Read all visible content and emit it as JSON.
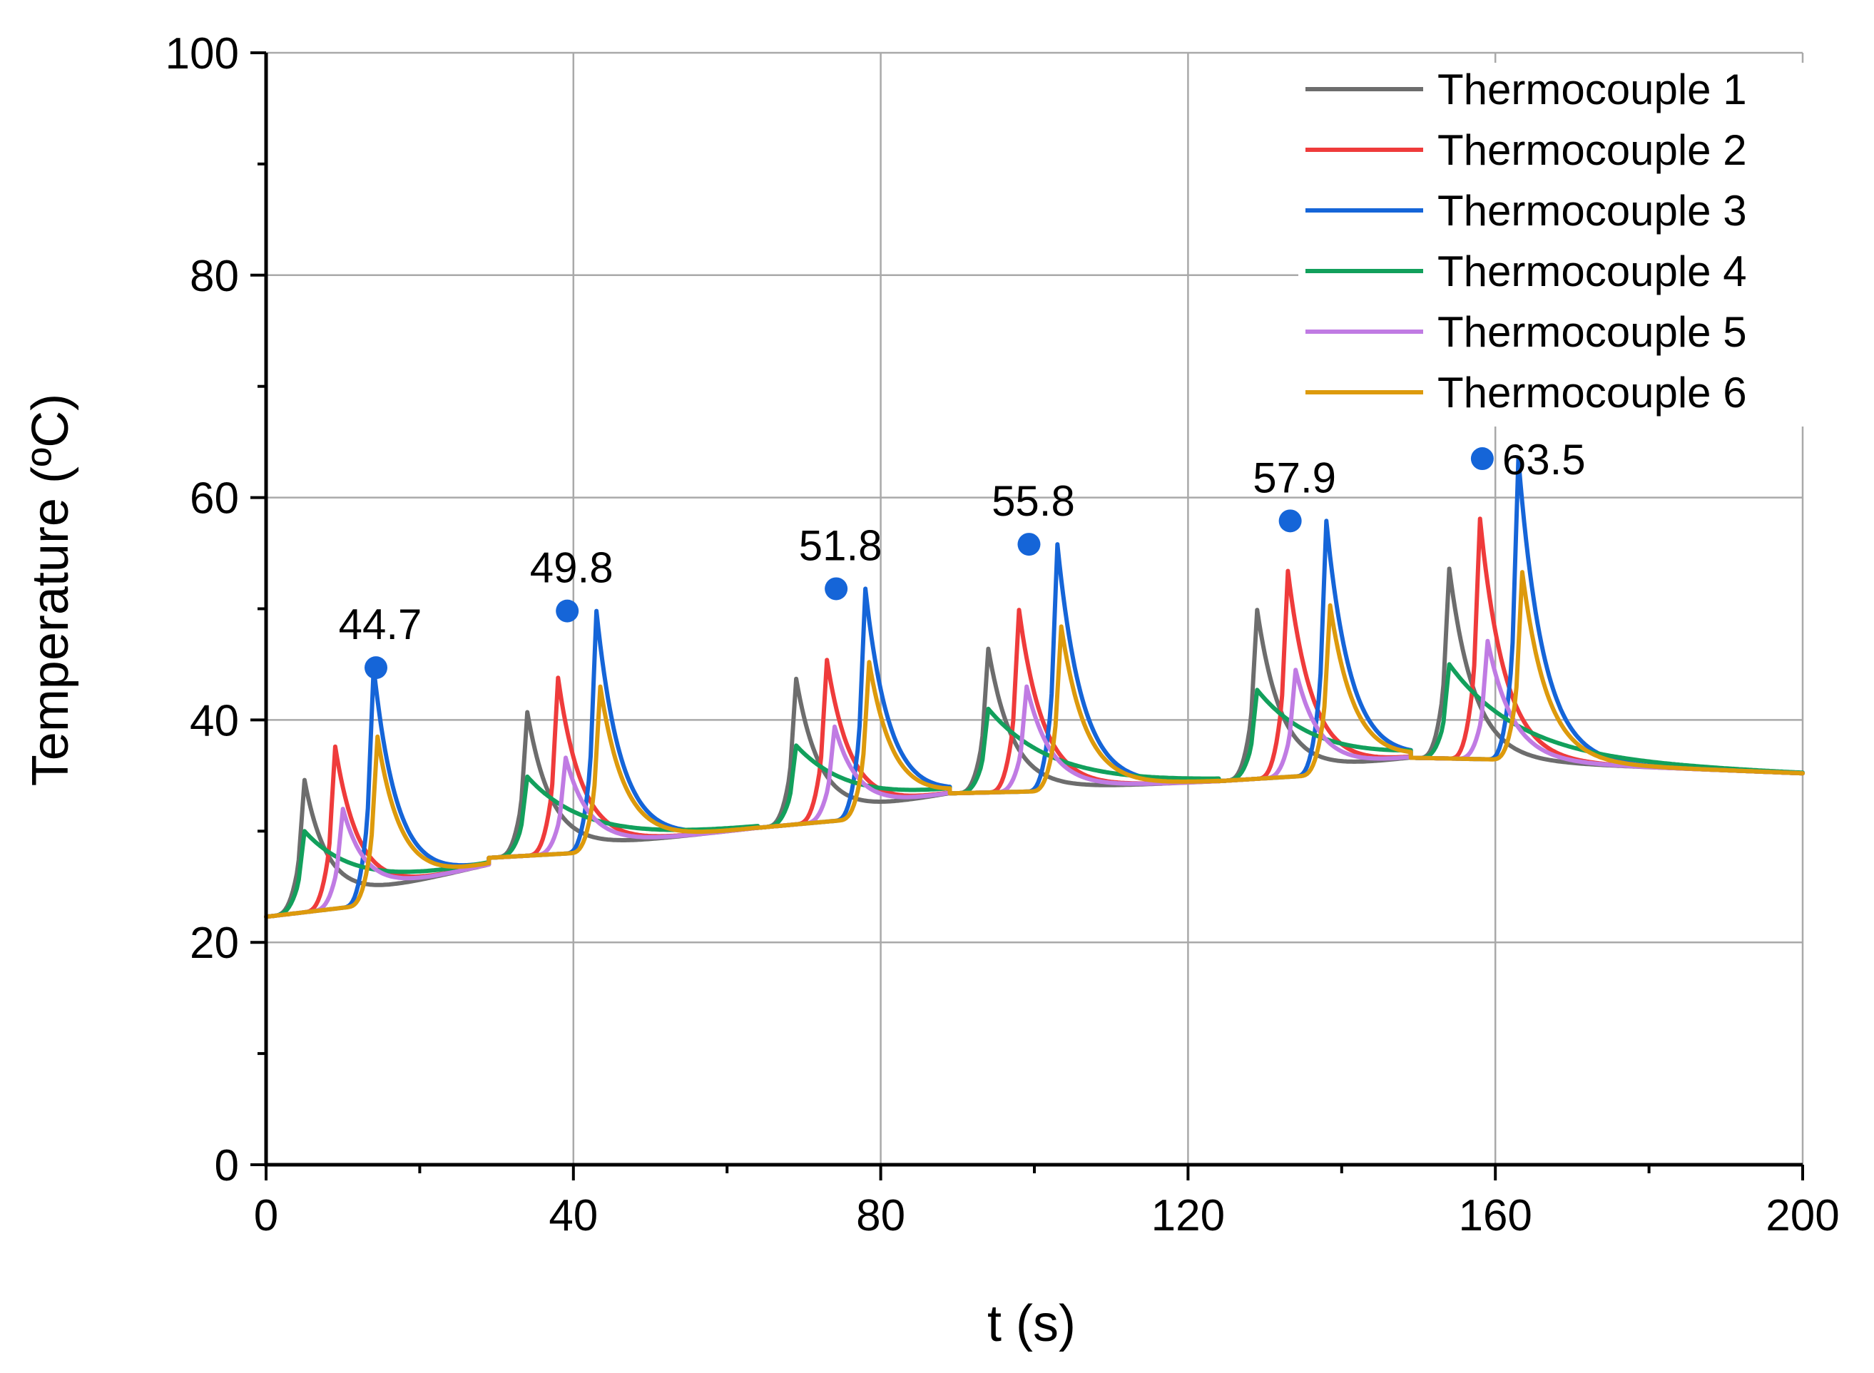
{
  "chart_data": {
    "type": "line",
    "title": "",
    "xlabel": "t (s)",
    "ylabel": "Temperature (ºC)",
    "xlim": [
      0,
      200
    ],
    "ylim": [
      0,
      100
    ],
    "xticks": [
      0,
      40,
      80,
      120,
      160,
      200
    ],
    "xtick_labels": [
      "0",
      "40",
      "80",
      "120",
      "160",
      "200"
    ],
    "yticks": [
      0,
      20,
      40,
      60,
      80,
      100
    ],
    "ytick_labels": [
      "0",
      "20",
      "40",
      "60",
      "80",
      "100"
    ],
    "x_minor_step": 20,
    "y_minor_step": 10,
    "grid": true,
    "legend_position": "top-right",
    "cycles": [
      {
        "start": 0,
        "end": 29,
        "base": 22.3,
        "floor": 27.0,
        "peaks": [
          34.6,
          37.6,
          44.7,
          30.0,
          32.0,
          38.5
        ]
      },
      {
        "start": 29,
        "end": 64,
        "base": 27.6,
        "floor": 30.3,
        "peaks": [
          40.7,
          43.8,
          49.8,
          34.9,
          36.6,
          43.0
        ]
      },
      {
        "start": 64,
        "end": 89,
        "base": 30.3,
        "floor": 33.4,
        "peaks": [
          43.7,
          45.4,
          51.8,
          37.7,
          39.4,
          45.2
        ]
      },
      {
        "start": 89,
        "end": 124,
        "base": 33.4,
        "floor": 34.5,
        "peaks": [
          46.4,
          49.9,
          55.8,
          41.0,
          43.0,
          48.4
        ]
      },
      {
        "start": 124,
        "end": 149,
        "base": 34.5,
        "floor": 36.6,
        "peaks": [
          49.9,
          53.4,
          57.9,
          42.7,
          44.5,
          50.3
        ]
      },
      {
        "start": 149,
        "end": 200,
        "base": 36.6,
        "floor": 35.2,
        "peaks": [
          53.6,
          58.1,
          63.5,
          45.0,
          47.1,
          53.3
        ]
      }
    ],
    "series": [
      {
        "name": "Thermocouple 1",
        "color": "#6d6d6d",
        "delay": 5
      },
      {
        "name": "Thermocouple 2",
        "color": "#ef3b3b",
        "delay": 9
      },
      {
        "name": "Thermocouple 3",
        "color": "#1565d8",
        "delay": 14
      },
      {
        "name": "Thermocouple 4",
        "color": "#12a05c",
        "delay": 5
      },
      {
        "name": "Thermocouple 5",
        "color": "#c07be3",
        "delay": 10
      },
      {
        "name": "Thermocouple 6",
        "color": "#dd9a0c",
        "delay": 14.5
      }
    ],
    "annotations": [
      {
        "x": 14.3,
        "y": 44.7,
        "label": "44.7",
        "color": "#1565d8"
      },
      {
        "x": 39.2,
        "y": 49.8,
        "label": "49.8",
        "color": "#1565d8"
      },
      {
        "x": 74.2,
        "y": 51.8,
        "label": "51.8",
        "color": "#1565d8"
      },
      {
        "x": 99.3,
        "y": 55.8,
        "label": "55.8",
        "color": "#1565d8"
      },
      {
        "x": 133.3,
        "y": 57.9,
        "label": "57.9",
        "color": "#1565d8"
      },
      {
        "x": 158.3,
        "y": 63.5,
        "label": "63.5",
        "color": "#1565d8"
      }
    ]
  }
}
